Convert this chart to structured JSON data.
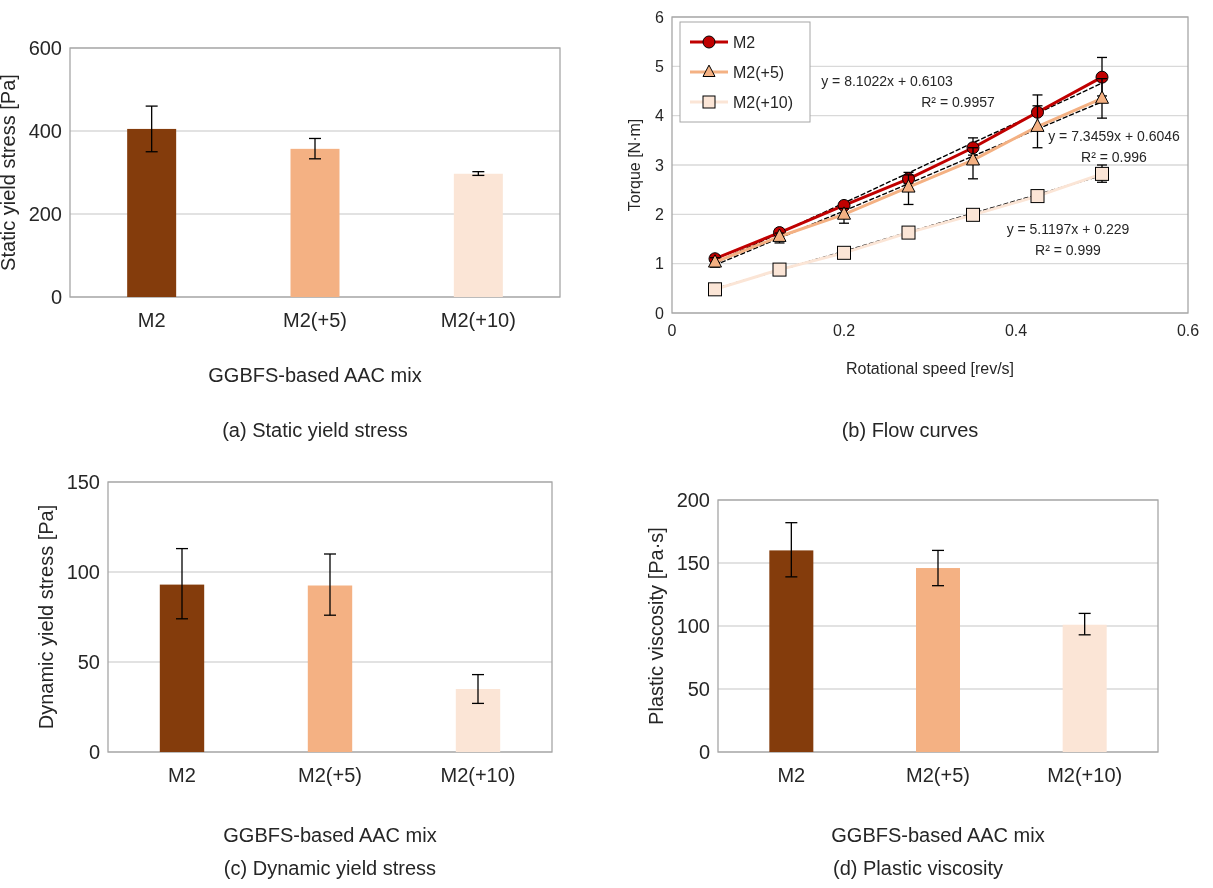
{
  "chart_data": [
    {
      "type": "bar",
      "title": "(a) Static yield stress",
      "xlabel": "GGBFS-based AAC mix",
      "ylabel": "Static yield stress [Pa]",
      "categories": [
        "M2",
        "M2(+5)",
        "M2(+10)"
      ],
      "values": [
        405,
        357,
        297
      ],
      "colors": [
        "#843c0c",
        "#f4b183",
        "#fbe5d6"
      ],
      "errors": [
        [
          350,
          460
        ],
        [
          333,
          382
        ],
        [
          293,
          302
        ]
      ],
      "ylim": [
        0,
        600
      ],
      "yticks": [
        0,
        200,
        400,
        600
      ],
      "grid": "y"
    },
    {
      "type": "line",
      "title": "(b) Flow curves",
      "xlabel": "Rotational speed [rev/s]",
      "ylabel": "Torque [N·m]",
      "x": [
        0.05,
        0.125,
        0.2,
        0.275,
        0.35,
        0.425,
        0.5
      ],
      "xlim": [
        0,
        0.6
      ],
      "xticks": [
        0,
        0.2,
        0.4,
        0.6
      ],
      "ylim": [
        0,
        6
      ],
      "yticks": [
        0,
        1,
        2,
        3,
        4,
        5,
        6
      ],
      "grid": "y",
      "legend": "top left",
      "series": [
        {
          "name": "M2",
          "color": "#c00000",
          "marker": "circle",
          "values": [
            1.1,
            1.63,
            2.18,
            2.72,
            3.35,
            4.07,
            4.78
          ],
          "errors": [
            [
              1.03,
              1.17
            ],
            [
              1.6,
              1.66
            ],
            [
              2.13,
              2.23
            ],
            [
              2.62,
              2.85
            ],
            [
              3.2,
              3.55
            ],
            [
              3.75,
              4.42
            ],
            [
              4.4,
              5.18
            ]
          ]
        },
        {
          "name": "M2(+5)",
          "color": "#f4b183",
          "marker": "triangle",
          "values": [
            1.03,
            1.55,
            2.0,
            2.55,
            3.1,
            3.78,
            4.35
          ],
          "errors": [
            [
              0.93,
              1.12
            ],
            [
              1.42,
              1.62
            ],
            [
              1.82,
              2.12
            ],
            [
              2.2,
              2.8
            ],
            [
              2.72,
              3.35
            ],
            [
              3.35,
              4.2
            ],
            [
              3.95,
              4.75
            ]
          ]
        },
        {
          "name": "M2(+10)",
          "color": "#fbe5d6",
          "marker": "square",
          "values": [
            0.48,
            0.88,
            1.22,
            1.63,
            1.99,
            2.37,
            2.82
          ],
          "errors": [
            null,
            null,
            null,
            null,
            null,
            null,
            [
              2.65,
              3.0
            ]
          ]
        },
        {
          "type": "line",
          "color": "#000000",
          "line_style": "dashed",
          "values": [
            1.02,
            1.62,
            2.23,
            2.84,
            3.45,
            4.05,
            4.66
          ]
        },
        {
          "type": "line",
          "color": "#000000",
          "line_style": "dashed",
          "values": [
            0.97,
            1.52,
            2.07,
            2.62,
            3.18,
            3.73,
            4.28
          ]
        },
        {
          "type": "line",
          "color": "#000000",
          "line_style": "dashed",
          "values": [
            0.49,
            0.87,
            1.25,
            1.64,
            2.02,
            2.4,
            2.79
          ]
        }
      ],
      "annotations": [
        "y = 8.1022x + 0.6103",
        "R² = 0.9957",
        "y = 7.3459x + 0.6046",
        "R² = 0.996",
        "y = 5.1197x + 0.229",
        "R² = 0.999"
      ]
    },
    {
      "type": "bar",
      "title": "(c) Dynamic yield stress",
      "xlabel": "GGBFS-based AAC mix",
      "ylabel": "Dynamic yield stress [Pa]",
      "categories": [
        "M2",
        "M2(+5)",
        "M2(+10)"
      ],
      "values": [
        93,
        92.5,
        35
      ],
      "colors": [
        "#843c0c",
        "#f4b183",
        "#fbe5d6"
      ],
      "errors": [
        [
          74,
          113
        ],
        [
          76,
          110
        ],
        [
          27,
          43
        ]
      ],
      "ylim": [
        0,
        150
      ],
      "yticks": [
        0,
        50,
        100,
        150
      ],
      "grid": "y"
    },
    {
      "type": "bar",
      "title": "(d) Plastic viscosity",
      "xlabel": "GGBFS-based AAC mix",
      "ylabel": "Plastic viscosity [Pa·s]",
      "categories": [
        "M2",
        "M2(+5)",
        "M2(+10)"
      ],
      "values": [
        160,
        146,
        101
      ],
      "colors": [
        "#843c0c",
        "#f4b183",
        "#fbe5d6"
      ],
      "errors": [
        [
          139,
          182
        ],
        [
          132,
          160
        ],
        [
          93,
          110
        ]
      ],
      "ylim": [
        0,
        200
      ],
      "yticks": [
        0,
        50,
        100,
        150,
        200
      ],
      "grid": "y"
    }
  ]
}
